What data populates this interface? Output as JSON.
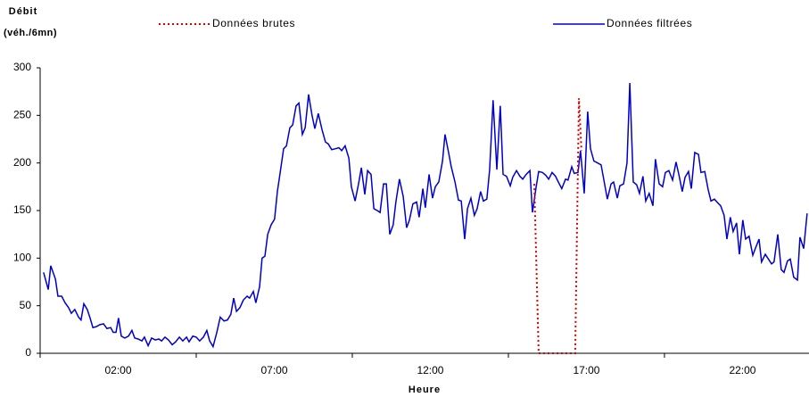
{
  "chart_data": {
    "type": "line",
    "ylabel": [
      "Débit",
      "(véh./6mn)"
    ],
    "xlabel": "Heure",
    "xlim": [
      -0.5,
      24.13
    ],
    "ylim": [
      0,
      300
    ],
    "yticks": [
      0,
      50,
      100,
      150,
      200,
      250,
      300
    ],
    "xticks": [
      {
        "value": 2,
        "label": "02:00"
      },
      {
        "value": 7,
        "label": "07:00"
      },
      {
        "value": 12,
        "label": "12:00"
      },
      {
        "value": 17,
        "label": "17:00"
      },
      {
        "value": 22,
        "label": "22:00"
      }
    ],
    "xminor_ticks": [
      -0.5,
      4.5,
      9.5,
      14.5,
      19.5
    ],
    "series": [
      {
        "name": "Données filtrées",
        "color": "#0000cc",
        "dash": "solid",
        "x": [
          -0.39,
          -0.24,
          -0.16,
          -0.01,
          0.07,
          0.19,
          0.3,
          0.41,
          0.5,
          0.61,
          0.73,
          0.81,
          0.9,
          1.01,
          1.1,
          1.19,
          1.3,
          1.41,
          1.53,
          1.64,
          1.76,
          1.84,
          1.93,
          2.01,
          2.1,
          2.21,
          2.33,
          2.44,
          2.53,
          2.64,
          2.76,
          2.84,
          2.96,
          3.07,
          3.19,
          3.3,
          3.39,
          3.5,
          3.61,
          3.73,
          3.84,
          3.96,
          4.07,
          4.19,
          4.27,
          4.39,
          4.5,
          4.61,
          4.73,
          4.84,
          4.93,
          5.04,
          5.16,
          5.27,
          5.39,
          5.5,
          5.61,
          5.7,
          5.79,
          5.9,
          6.01,
          6.13,
          6.21,
          6.33,
          6.41,
          6.53,
          6.61,
          6.7,
          6.79,
          6.9,
          7.01,
          7.1,
          7.19,
          7.3,
          7.39,
          7.5,
          7.59,
          7.7,
          7.79,
          7.9,
          7.99,
          8.1,
          8.21,
          8.3,
          8.41,
          8.53,
          8.64,
          8.73,
          8.84,
          8.96,
          9.07,
          9.16,
          9.27,
          9.39,
          9.47,
          9.59,
          9.7,
          9.79,
          9.9,
          9.99,
          10.1,
          10.19,
          10.3,
          10.39,
          10.5,
          10.59,
          10.7,
          10.81,
          10.9,
          11.01,
          11.13,
          11.24,
          11.33,
          11.44,
          11.56,
          11.64,
          11.76,
          11.84,
          11.96,
          12.07,
          12.16,
          12.27,
          12.39,
          12.47,
          12.59,
          12.67,
          12.79,
          12.9,
          12.99,
          13.1,
          13.19,
          13.3,
          13.41,
          13.5,
          13.61,
          13.7,
          13.81,
          13.9,
          14.01,
          14.13,
          14.24,
          14.33,
          14.44,
          14.56,
          14.64,
          14.76,
          14.87,
          14.96,
          15.07,
          15.19,
          15.27,
          15.39,
          15.47,
          15.59,
          15.7,
          15.79,
          15.9,
          16.01,
          16.1,
          16.21,
          16.33,
          16.41,
          16.53,
          16.61,
          16.73,
          16.81,
          16.93,
          17.04,
          17.13,
          17.24,
          17.36,
          17.47,
          17.56,
          17.67,
          17.79,
          17.87,
          17.99,
          18.07,
          18.19,
          18.3,
          18.39,
          18.5,
          18.61,
          18.7,
          18.81,
          18.9,
          19.01,
          19.13,
          19.21,
          19.33,
          19.44,
          19.53,
          19.64,
          19.76,
          19.87,
          19.96,
          20.07,
          20.16,
          20.27,
          20.36,
          20.47,
          20.59,
          20.67,
          20.79,
          20.9,
          20.99,
          21.1,
          21.21,
          21.3,
          21.41,
          21.5,
          21.61,
          21.7,
          21.81,
          21.9,
          22.01,
          22.1,
          22.21,
          22.33,
          22.41,
          22.53,
          22.61,
          22.73,
          22.81,
          22.93,
          23.01,
          23.13,
          23.24,
          23.33,
          23.44,
          23.53,
          23.64,
          23.76,
          23.84,
          23.96,
          24.07
        ],
        "values": [
          85,
          67,
          92,
          78,
          60,
          60,
          53,
          48,
          42,
          46,
          38,
          35,
          52,
          46,
          37,
          27,
          28,
          30,
          31,
          26,
          27,
          22,
          22,
          37,
          18,
          16,
          18,
          24,
          16,
          15,
          13,
          17,
          8,
          16,
          14,
          15,
          13,
          17,
          14,
          9,
          12,
          17,
          13,
          17,
          12,
          18,
          17,
          13,
          17,
          24,
          13,
          7,
          22,
          38,
          34,
          35,
          41,
          58,
          44,
          48,
          56,
          60,
          58,
          65,
          53,
          70,
          100,
          102,
          125,
          135,
          141,
          170,
          190,
          215,
          218,
          237,
          240,
          260,
          263,
          230,
          237,
          272,
          250,
          236,
          252,
          235,
          222,
          220,
          214,
          215,
          216,
          213,
          218,
          205,
          175,
          160,
          178,
          195,
          167,
          192,
          188,
          152,
          150,
          148,
          178,
          178,
          125,
          135,
          160,
          183,
          165,
          132,
          140,
          157,
          159,
          143,
          173,
          153,
          188,
          163,
          175,
          180,
          202,
          230,
          210,
          196,
          180,
          161,
          160,
          120,
          152,
          163,
          145,
          152,
          170,
          160,
          162,
          193,
          266,
          193,
          260,
          188,
          186,
          176,
          185,
          192,
          186,
          183,
          188,
          192,
          148,
          175,
          191,
          190,
          187,
          183,
          190,
          186,
          180,
          173,
          183,
          182,
          196,
          189,
          190,
          213,
          168,
          254,
          215,
          202,
          200,
          198,
          182,
          162,
          178,
          180,
          163,
          176,
          178,
          200,
          284,
          180,
          177,
          168,
          186,
          160,
          168,
          155,
          204,
          178,
          175,
          190,
          192,
          182,
          201,
          188,
          170,
          185,
          191,
          173,
          211,
          209,
          190,
          191,
          172,
          160,
          162,
          158,
          155,
          145,
          120,
          143,
          128,
          137,
          104,
          140,
          120,
          123,
          103,
          110,
          120,
          96,
          104,
          100,
          94,
          96,
          125,
          88,
          85,
          97,
          99,
          80,
          77,
          122,
          110,
          147
        ]
      },
      {
        "name": "Données brutes",
        "color": "#dd0000",
        "dash": "dot",
        "x": [
          15.33,
          15.47,
          16.64,
          16.76,
          16.84
        ],
        "values": [
          178,
          0,
          0,
          268,
          213
        ]
      }
    ]
  }
}
